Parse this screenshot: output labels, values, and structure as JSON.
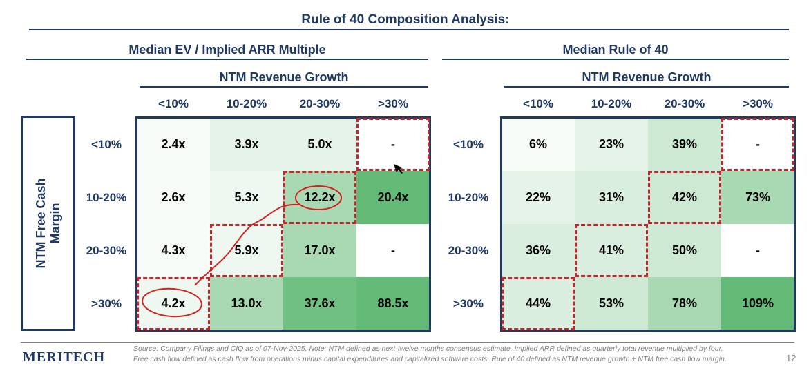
{
  "title": "Rule of 40 Composition Analysis:",
  "left_panel": {
    "title": "Median EV / Implied ARR Multiple",
    "col_group": "NTM Revenue Growth",
    "columns": [
      "<10%",
      "10-20%",
      "20-30%",
      ">30%"
    ],
    "rows": [
      "<10%",
      "10-20%",
      "20-30%",
      ">30%"
    ],
    "values": [
      [
        "2.4x",
        "3.9x",
        "5.0x",
        "-"
      ],
      [
        "2.6x",
        "5.3x",
        "12.2x",
        "20.4x"
      ],
      [
        "4.3x",
        "5.9x",
        "17.0x",
        "-"
      ],
      [
        "4.2x",
        "13.0x",
        "37.6x",
        "88.5x"
      ]
    ],
    "colors": [
      [
        "#f7fbf8",
        "#e6f3e9",
        "#e6f3e9",
        "#ffffff"
      ],
      [
        "#f7fbf8",
        "#eef7f0",
        "#a9d9b3",
        "#63bb77"
      ],
      [
        "#f7fbf8",
        "#eef7f0",
        "#a9d9b3",
        "#ffffff"
      ],
      [
        "#eef7f0",
        "#a9d9b3",
        "#6fc081",
        "#63bb77"
      ]
    ]
  },
  "right_panel": {
    "title": "Median Rule of 40",
    "col_group": "NTM Revenue Growth",
    "columns": [
      "<10%",
      "10-20%",
      "20-30%",
      ">30%"
    ],
    "rows": [
      "<10%",
      "10-20%",
      "20-30%",
      ">30%"
    ],
    "values": [
      [
        "6%",
        "23%",
        "39%",
        "-"
      ],
      [
        "22%",
        "31%",
        "42%",
        "73%"
      ],
      [
        "36%",
        "41%",
        "50%",
        "-"
      ],
      [
        "44%",
        "53%",
        "78%",
        "109%"
      ]
    ],
    "colors": [
      [
        "#f7fbf8",
        "#e6f3e9",
        "#cde9d4",
        "#ffffff"
      ],
      [
        "#e6f3e9",
        "#d9eedf",
        "#cde9d4",
        "#a9d9b3"
      ],
      [
        "#d9eedf",
        "#d9eedf",
        "#cde9d4",
        "#ffffff"
      ],
      [
        "#d9eedf",
        "#cde9d4",
        "#a9d9b3",
        "#63bb77"
      ]
    ]
  },
  "row_axis_label_line1": "NTM Free Cash",
  "row_axis_label_line2": "Margin",
  "footer": {
    "logo": "MERITECH",
    "source": "Source: Company Filings and CIQ as of 07-Nov-2025. Note: NTM defined as next-twelve months consensus estimate. Implied ARR defined as quarterly total revenue multiplied by four. Free cash flow defined as cash flow from operations minus capital expenditures and capitalized software costs. Rule of 40 defined as NTM revenue growth + NTM free cash flow margin.",
    "page_number": "12"
  },
  "colors": {
    "navy": "#1f3864",
    "red_dash": "#c0272d",
    "annotation": "#d62020"
  }
}
